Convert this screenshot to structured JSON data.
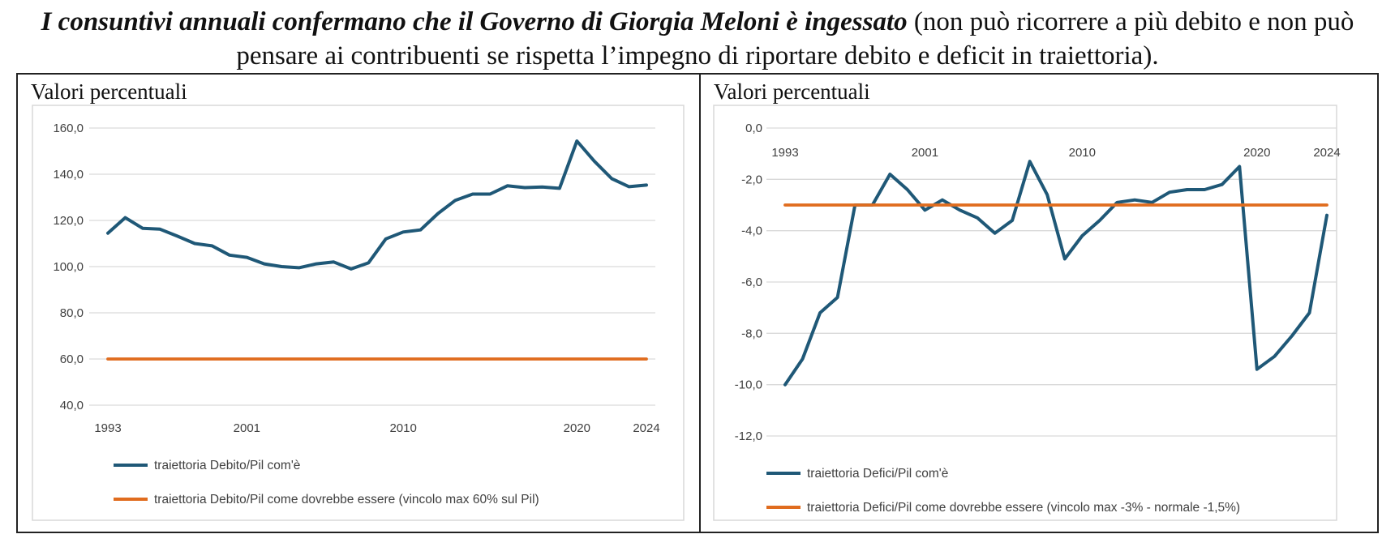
{
  "headline": {
    "lead": "I consuntivi annuali confermano che il Governo di Giorgia Meloni è ingessato",
    "rest": " (non può ricorrere a più debito e non può pensare ai contribuenti se rispetta l’impegno di riportare debito e deficit in traiettoria)."
  },
  "colors": {
    "actual": "#1f5877",
    "target": "#e06c1e",
    "grid": "#d9d9d9"
  },
  "chart_data": [
    {
      "type": "line",
      "subtitle": "Valori percentuali",
      "x_tick_labels": [
        {
          "year": 1993,
          "label": "1993"
        },
        {
          "year": 2001,
          "label": "2001"
        },
        {
          "year": 2010,
          "label": "2010"
        },
        {
          "year": 2020,
          "label": "2020"
        },
        {
          "year": 2024,
          "label": "2024"
        }
      ],
      "y_tick_labels": [
        "160,0",
        "140,0",
        "120,0",
        "100,0",
        "80,0",
        "60,0",
        "40,0"
      ],
      "ylim": [
        40,
        160
      ],
      "xlim": [
        1993,
        2024
      ],
      "series": [
        {
          "name": "traiettoria Debito/Pil com'è",
          "x": [
            1993,
            1994,
            1995,
            1996,
            1997,
            1998,
            1999,
            2000,
            2001,
            2002,
            2003,
            2004,
            2005,
            2006,
            2007,
            2008,
            2009,
            2010,
            2011,
            2012,
            2013,
            2014,
            2015,
            2016,
            2017,
            2018,
            2019,
            2020,
            2021,
            2022,
            2023,
            2024
          ],
          "values": [
            114.5,
            121.2,
            116.6,
            116.2,
            113.2,
            110.0,
            109.0,
            105.0,
            104.0,
            101.2,
            100.0,
            99.5,
            101.2,
            102.0,
            99.0,
            101.6,
            112.0,
            115.0,
            115.9,
            123.0,
            128.7,
            131.4,
            131.4,
            135.0,
            134.2,
            134.5,
            133.9,
            154.4,
            145.7,
            138.1,
            134.6,
            135.3
          ]
        },
        {
          "name": "traiettoria Debito/Pil come dovrebbe essere (vincolo max 60% sul Pil)",
          "x": [
            1993,
            2024
          ],
          "values": [
            60,
            60
          ]
        }
      ]
    },
    {
      "type": "line",
      "subtitle": "Valori percentuali",
      "x_tick_labels": [
        {
          "year": 1993,
          "label": "1993"
        },
        {
          "year": 2001,
          "label": "2001"
        },
        {
          "year": 2010,
          "label": "2010"
        },
        {
          "year": 2020,
          "label": "2020"
        },
        {
          "year": 2024,
          "label": "2024"
        }
      ],
      "y_tick_labels": [
        "0,0",
        "-2,0",
        "-4,0",
        "-6,0",
        "-8,0",
        "-10,0",
        "-12,0"
      ],
      "ylim": [
        -12,
        0
      ],
      "xlim": [
        1993,
        2024
      ],
      "series": [
        {
          "name": "traiettoria Defici/Pil com'è",
          "x": [
            1993,
            1994,
            1995,
            1996,
            1997,
            1998,
            1999,
            2000,
            2001,
            2002,
            2003,
            2004,
            2005,
            2006,
            2007,
            2008,
            2009,
            2010,
            2011,
            2012,
            2013,
            2014,
            2015,
            2016,
            2017,
            2018,
            2019,
            2020,
            2021,
            2022,
            2023,
            2024
          ],
          "values": [
            -10.0,
            -9.0,
            -7.2,
            -6.6,
            -3.0,
            -3.0,
            -1.8,
            -2.4,
            -3.2,
            -2.8,
            -3.2,
            -3.5,
            -4.1,
            -3.6,
            -1.3,
            -2.6,
            -5.1,
            -4.2,
            -3.6,
            -2.9,
            -2.8,
            -2.9,
            -2.5,
            -2.4,
            -2.4,
            -2.2,
            -1.5,
            -9.4,
            -8.9,
            -8.1,
            -7.2,
            -3.4
          ]
        },
        {
          "name": "traiettoria Defici/Pil come dovrebbe essere (vincolo max -3% - normale -1,5%)",
          "x": [
            1993,
            2024
          ],
          "values": [
            -3,
            -3
          ]
        }
      ]
    }
  ]
}
